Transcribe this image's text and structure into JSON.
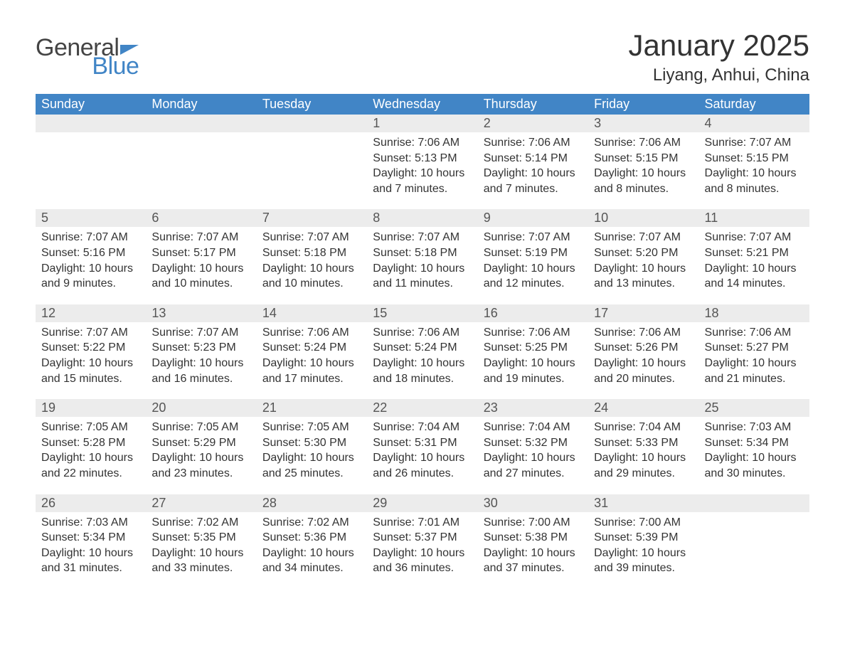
{
  "logo": {
    "word1": "General",
    "word2": "Blue"
  },
  "title": {
    "month": "January 2025",
    "location": "Liyang, Anhui, China"
  },
  "colors": {
    "header_bg": "#4185c6",
    "header_text": "#ffffff",
    "daynum_bg": "#ececec",
    "row_divider": "#4185c6",
    "body_text": "#333333",
    "logo_gray": "#444444",
    "logo_blue": "#4185c6",
    "page_bg": "#ffffff"
  },
  "layout": {
    "columns": 7,
    "rows": 5,
    "title_fontsize": 42,
    "location_fontsize": 24,
    "header_fontsize": 18,
    "daynum_fontsize": 18,
    "body_fontsize": 16
  },
  "weekdays": [
    "Sunday",
    "Monday",
    "Tuesday",
    "Wednesday",
    "Thursday",
    "Friday",
    "Saturday"
  ],
  "weeks": [
    [
      null,
      null,
      null,
      {
        "n": "1",
        "sr": "Sunrise: 7:06 AM",
        "ss": "Sunset: 5:13 PM",
        "d1": "Daylight: 10 hours",
        "d2": "and 7 minutes."
      },
      {
        "n": "2",
        "sr": "Sunrise: 7:06 AM",
        "ss": "Sunset: 5:14 PM",
        "d1": "Daylight: 10 hours",
        "d2": "and 7 minutes."
      },
      {
        "n": "3",
        "sr": "Sunrise: 7:06 AM",
        "ss": "Sunset: 5:15 PM",
        "d1": "Daylight: 10 hours",
        "d2": "and 8 minutes."
      },
      {
        "n": "4",
        "sr": "Sunrise: 7:07 AM",
        "ss": "Sunset: 5:15 PM",
        "d1": "Daylight: 10 hours",
        "d2": "and 8 minutes."
      }
    ],
    [
      {
        "n": "5",
        "sr": "Sunrise: 7:07 AM",
        "ss": "Sunset: 5:16 PM",
        "d1": "Daylight: 10 hours",
        "d2": "and 9 minutes."
      },
      {
        "n": "6",
        "sr": "Sunrise: 7:07 AM",
        "ss": "Sunset: 5:17 PM",
        "d1": "Daylight: 10 hours",
        "d2": "and 10 minutes."
      },
      {
        "n": "7",
        "sr": "Sunrise: 7:07 AM",
        "ss": "Sunset: 5:18 PM",
        "d1": "Daylight: 10 hours",
        "d2": "and 10 minutes."
      },
      {
        "n": "8",
        "sr": "Sunrise: 7:07 AM",
        "ss": "Sunset: 5:18 PM",
        "d1": "Daylight: 10 hours",
        "d2": "and 11 minutes."
      },
      {
        "n": "9",
        "sr": "Sunrise: 7:07 AM",
        "ss": "Sunset: 5:19 PM",
        "d1": "Daylight: 10 hours",
        "d2": "and 12 minutes."
      },
      {
        "n": "10",
        "sr": "Sunrise: 7:07 AM",
        "ss": "Sunset: 5:20 PM",
        "d1": "Daylight: 10 hours",
        "d2": "and 13 minutes."
      },
      {
        "n": "11",
        "sr": "Sunrise: 7:07 AM",
        "ss": "Sunset: 5:21 PM",
        "d1": "Daylight: 10 hours",
        "d2": "and 14 minutes."
      }
    ],
    [
      {
        "n": "12",
        "sr": "Sunrise: 7:07 AM",
        "ss": "Sunset: 5:22 PM",
        "d1": "Daylight: 10 hours",
        "d2": "and 15 minutes."
      },
      {
        "n": "13",
        "sr": "Sunrise: 7:07 AM",
        "ss": "Sunset: 5:23 PM",
        "d1": "Daylight: 10 hours",
        "d2": "and 16 minutes."
      },
      {
        "n": "14",
        "sr": "Sunrise: 7:06 AM",
        "ss": "Sunset: 5:24 PM",
        "d1": "Daylight: 10 hours",
        "d2": "and 17 minutes."
      },
      {
        "n": "15",
        "sr": "Sunrise: 7:06 AM",
        "ss": "Sunset: 5:24 PM",
        "d1": "Daylight: 10 hours",
        "d2": "and 18 minutes."
      },
      {
        "n": "16",
        "sr": "Sunrise: 7:06 AM",
        "ss": "Sunset: 5:25 PM",
        "d1": "Daylight: 10 hours",
        "d2": "and 19 minutes."
      },
      {
        "n": "17",
        "sr": "Sunrise: 7:06 AM",
        "ss": "Sunset: 5:26 PM",
        "d1": "Daylight: 10 hours",
        "d2": "and 20 minutes."
      },
      {
        "n": "18",
        "sr": "Sunrise: 7:06 AM",
        "ss": "Sunset: 5:27 PM",
        "d1": "Daylight: 10 hours",
        "d2": "and 21 minutes."
      }
    ],
    [
      {
        "n": "19",
        "sr": "Sunrise: 7:05 AM",
        "ss": "Sunset: 5:28 PM",
        "d1": "Daylight: 10 hours",
        "d2": "and 22 minutes."
      },
      {
        "n": "20",
        "sr": "Sunrise: 7:05 AM",
        "ss": "Sunset: 5:29 PM",
        "d1": "Daylight: 10 hours",
        "d2": "and 23 minutes."
      },
      {
        "n": "21",
        "sr": "Sunrise: 7:05 AM",
        "ss": "Sunset: 5:30 PM",
        "d1": "Daylight: 10 hours",
        "d2": "and 25 minutes."
      },
      {
        "n": "22",
        "sr": "Sunrise: 7:04 AM",
        "ss": "Sunset: 5:31 PM",
        "d1": "Daylight: 10 hours",
        "d2": "and 26 minutes."
      },
      {
        "n": "23",
        "sr": "Sunrise: 7:04 AM",
        "ss": "Sunset: 5:32 PM",
        "d1": "Daylight: 10 hours",
        "d2": "and 27 minutes."
      },
      {
        "n": "24",
        "sr": "Sunrise: 7:04 AM",
        "ss": "Sunset: 5:33 PM",
        "d1": "Daylight: 10 hours",
        "d2": "and 29 minutes."
      },
      {
        "n": "25",
        "sr": "Sunrise: 7:03 AM",
        "ss": "Sunset: 5:34 PM",
        "d1": "Daylight: 10 hours",
        "d2": "and 30 minutes."
      }
    ],
    [
      {
        "n": "26",
        "sr": "Sunrise: 7:03 AM",
        "ss": "Sunset: 5:34 PM",
        "d1": "Daylight: 10 hours",
        "d2": "and 31 minutes."
      },
      {
        "n": "27",
        "sr": "Sunrise: 7:02 AM",
        "ss": "Sunset: 5:35 PM",
        "d1": "Daylight: 10 hours",
        "d2": "and 33 minutes."
      },
      {
        "n": "28",
        "sr": "Sunrise: 7:02 AM",
        "ss": "Sunset: 5:36 PM",
        "d1": "Daylight: 10 hours",
        "d2": "and 34 minutes."
      },
      {
        "n": "29",
        "sr": "Sunrise: 7:01 AM",
        "ss": "Sunset: 5:37 PM",
        "d1": "Daylight: 10 hours",
        "d2": "and 36 minutes."
      },
      {
        "n": "30",
        "sr": "Sunrise: 7:00 AM",
        "ss": "Sunset: 5:38 PM",
        "d1": "Daylight: 10 hours",
        "d2": "and 37 minutes."
      },
      {
        "n": "31",
        "sr": "Sunrise: 7:00 AM",
        "ss": "Sunset: 5:39 PM",
        "d1": "Daylight: 10 hours",
        "d2": "and 39 minutes."
      },
      null
    ]
  ]
}
